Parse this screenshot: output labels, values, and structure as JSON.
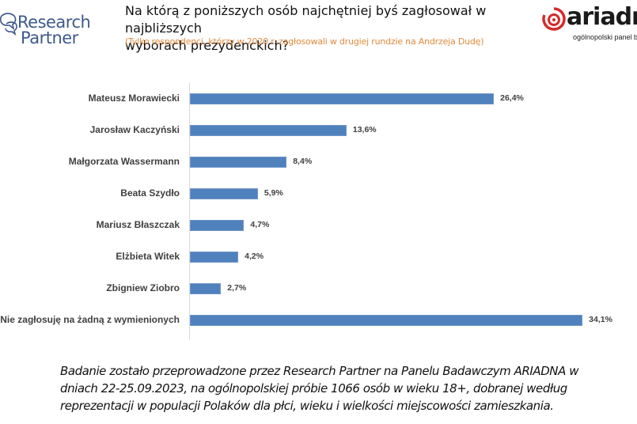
{
  "header": {
    "left_logo": {
      "line1": "Research",
      "line2": "Partner",
      "icon": "speech-bubbles-icon"
    },
    "title": "Na którą z poniższych osób najchętniej byś zagłosował w najbliższych wyborach prezydenckich?",
    "subtitle": "(Tylko respondenci, którzy w 2020 r. zagłosowali w drugiej rundzie na Andrzeja Dudę)",
    "right_logo": {
      "name": "ariadna",
      "tagline": "ogólnopolski panel b",
      "icon": "target-spiral-icon"
    }
  },
  "colors": {
    "bar": "#4f81bd",
    "subtitle": "#e08a3c",
    "logo_blue": "#3d5a8c",
    "logo_red": "#d42a2a"
  },
  "chart_data": {
    "type": "bar",
    "orientation": "horizontal",
    "title": "Na którą z poniższych osób najchętniej byś zagłosował w najbliższych wyborach prezydenckich?",
    "subtitle": "(Tylko respondenci, którzy w 2020 r. zagłosowali w drugiej rundzie na Andrzeja Dudę)",
    "categories": [
      "Mateusz Morawiecki",
      "Jarosław Kaczyński",
      "Małgorzata Wassermann",
      "Beata Szydło",
      "Mariusz Błaszczak",
      "Elżbieta Witek",
      "Zbigniew Ziobro",
      "Nie zagłosuję na żadną z wymienionych"
    ],
    "values": [
      26.4,
      13.6,
      8.4,
      5.9,
      4.7,
      4.2,
      2.7,
      34.1
    ],
    "labels": [
      "26,4%",
      "13,6%",
      "8,4%",
      "5,9%",
      "4,7%",
      "4,2%",
      "2,7%",
      "34,1%"
    ],
    "xlabel": "",
    "ylabel": "",
    "xlim": [
      0,
      36
    ],
    "grid": false,
    "legend": "none"
  },
  "footer": {
    "line1": "Badanie zostało przeprowadzone przez Research Partner na Panelu Badawczym ARIADNA w",
    "line2": "dniach 22-25.09.2023, na ogólnopolskiej próbie 1066 osób w wieku 18+, dobranej według",
    "line3": "reprezentacji w populacji Polaków dla płci, wieku i wielkości miejscowości zamieszkania."
  }
}
